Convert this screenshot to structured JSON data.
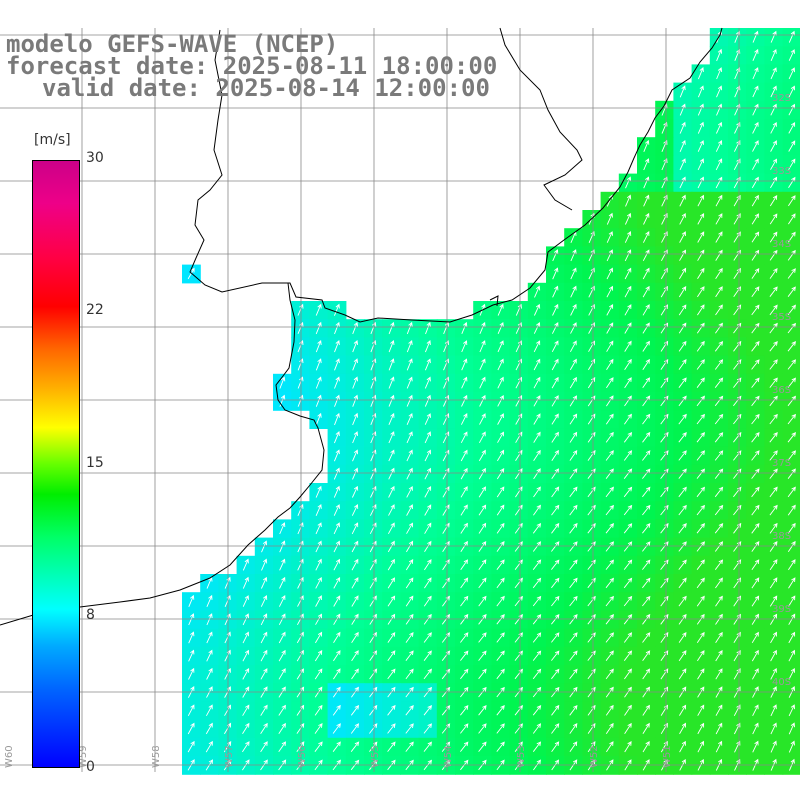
{
  "header": {
    "line1": "modelo GEFS-WAVE (NCEP)",
    "line2": "forecast date: 2025-08-11 18:00:00",
    "line3": "valid date: 2025-08-14 12:00:00"
  },
  "colorbar": {
    "unit": "[m/s]",
    "min": 0,
    "max": 30,
    "ticks": [
      "30",
      "22",
      "15",
      "8",
      "0"
    ],
    "colors": [
      "#0000ff",
      "#00aaff",
      "#00ffff",
      "#00ee00",
      "#ffff00",
      "#ff6600",
      "#ff0000",
      "#cc0088"
    ]
  },
  "map": {
    "parameter": "wind speed and direction",
    "units": "m/s",
    "wind_direction": "from southwest toward northeast",
    "lat_labels": [
      "32S",
      "33S",
      "34S",
      "35S",
      "36S",
      "37S",
      "38S",
      "39S",
      "40S"
    ],
    "lon_labels": [
      "W60",
      "W59",
      "W58",
      "W57",
      "W56",
      "W55",
      "W54",
      "W53",
      "W52",
      "W51"
    ],
    "land_color": "#ffffff",
    "coast_color": "#000000",
    "grid_color": "#808080"
  }
}
